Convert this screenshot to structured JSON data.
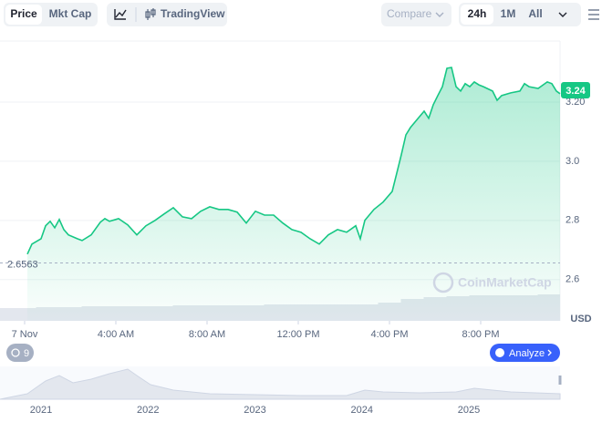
{
  "toolbar": {
    "tabs": [
      "Price",
      "Mkt Cap"
    ],
    "view": "TradingView",
    "compare": "Compare",
    "ranges": [
      "24h",
      "1M",
      "All"
    ]
  },
  "chart_data": {
    "type": "line",
    "color": "#16c784",
    "x": [
      0.12,
      0.32,
      0.72,
      0.92,
      1.12,
      1.32,
      1.52,
      1.72,
      1.92,
      2.32,
      2.52,
      2.92,
      3.32,
      3.52,
      3.72,
      4.12,
      4.52,
      4.92,
      5.32,
      5.72,
      6.12,
      6.52,
      6.92,
      7.32,
      7.72,
      8.12,
      8.52,
      8.92,
      9.32,
      9.72,
      10.12,
      10.52,
      10.92,
      11.32,
      11.72,
      12.12,
      12.52,
      12.92,
      13.32,
      13.72,
      14.12,
      14.52,
      14.72,
      14.92,
      15.32,
      15.72,
      16.12,
      16.32,
      16.52,
      16.72,
      16.92,
      17.32,
      17.52,
      17.72,
      17.92,
      18.12,
      18.32,
      18.52,
      18.72,
      18.92,
      19.12,
      19.32,
      19.52,
      19.72,
      19.92,
      20.12,
      20.52,
      20.72,
      20.92,
      21.32,
      21.72,
      21.92,
      22.12,
      22.52,
      22.92,
      23.12,
      23.32,
      23.48
    ],
    "values": [
      2.686,
      2.72,
      2.738,
      2.782,
      2.797,
      2.775,
      2.803,
      2.769,
      2.751,
      2.738,
      2.732,
      2.751,
      2.794,
      2.806,
      2.797,
      2.806,
      2.785,
      2.751,
      2.782,
      2.8,
      2.822,
      2.843,
      2.812,
      2.806,
      2.831,
      2.846,
      2.837,
      2.837,
      2.828,
      2.791,
      2.831,
      2.818,
      2.818,
      2.791,
      2.769,
      2.76,
      2.738,
      2.72,
      2.751,
      2.769,
      2.76,
      2.782,
      2.738,
      2.8,
      2.837,
      2.862,
      2.898,
      2.96,
      3.022,
      3.089,
      3.114,
      3.151,
      3.169,
      3.145,
      3.191,
      3.222,
      3.252,
      3.314,
      3.317,
      3.252,
      3.237,
      3.262,
      3.252,
      3.268,
      3.258,
      3.252,
      3.237,
      3.206,
      3.222,
      3.231,
      3.237,
      3.262,
      3.252,
      3.246,
      3.268,
      3.262,
      3.237,
      3.228
    ],
    "xlim": [
      -1.08,
      23.48
    ],
    "ylim": [
      2.55,
      3.4
    ],
    "xticks": [
      {
        "value": 0,
        "label": "7 Nov"
      },
      {
        "value": 4,
        "label": "4:00 AM"
      },
      {
        "value": 8,
        "label": "8:00 AM"
      },
      {
        "value": 12,
        "label": "12:00 PM"
      },
      {
        "value": 16,
        "label": "4:00 PM"
      },
      {
        "value": 20,
        "label": "8:00 PM"
      }
    ],
    "yticks": [
      2.6,
      2.8,
      {
        "value": 3,
        "label": "3.0"
      },
      {
        "value": 3.2,
        "label": "3.20"
      }
    ],
    "grid": true,
    "reference_line": 2.6563,
    "current_price": 3.24,
    "currency": "USD",
    "watermark": "CoinMarketCap",
    "volume": {
      "x": [
        0,
        1,
        2,
        3,
        4,
        5,
        6,
        7,
        8,
        9,
        10,
        11,
        12,
        13,
        14,
        15,
        16,
        17,
        18,
        19,
        20,
        21,
        22,
        23
      ],
      "values": [
        14,
        15,
        15,
        16,
        16,
        16,
        16,
        17,
        17,
        17,
        17,
        18,
        18,
        18,
        18,
        18,
        20,
        24,
        26,
        27,
        28,
        28,
        28,
        29
      ],
      "ylim": [
        0,
        100
      ]
    }
  },
  "events_count": "9",
  "analyze": "Analyze",
  "navigator": {
    "xticks": [
      "2021",
      "2022",
      "2023",
      "2024",
      "2025"
    ]
  }
}
